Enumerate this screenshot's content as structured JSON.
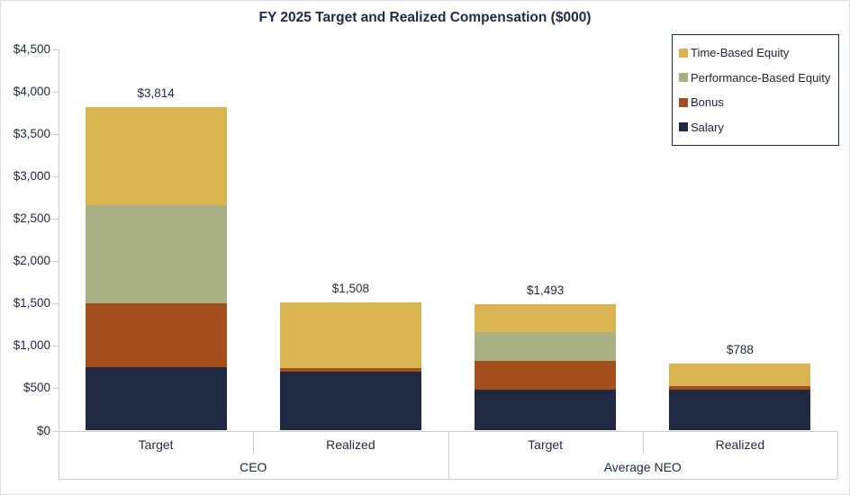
{
  "title": "FY 2025 Target and Realized Compensation ($000)",
  "chart_data": {
    "type": "bar",
    "stacked": true,
    "title": "FY 2025 Target and Realized Compensation ($000)",
    "categories": [
      "Target",
      "Realized",
      "Target",
      "Realized"
    ],
    "groups": [
      "CEO",
      "Average NEO"
    ],
    "series": [
      {
        "name": "Salary",
        "color": "#1f2a42",
        "values": [
          750,
          700,
          478,
          478
        ]
      },
      {
        "name": "Bonus",
        "color": "#a44e1d",
        "values": [
          750,
          40,
          347,
          47
        ]
      },
      {
        "name": "Performance-Based Equity",
        "color": "#a9b083",
        "values": [
          1157,
          0,
          334,
          0
        ]
      },
      {
        "name": "Time-Based Equity",
        "color": "#d9b451",
        "values": [
          1157,
          768,
          334,
          263
        ]
      }
    ],
    "totals": [
      3814,
      1508,
      1493,
      788
    ],
    "total_labels": [
      "$3,814",
      "$1,508",
      "$1,493",
      "$788"
    ],
    "y_tick_labels": [
      "$4,500",
      "$4,000",
      "$3,500",
      "$3,000",
      "$2,500",
      "$2,000",
      "$1,500",
      "$1,000",
      "$500",
      "$0"
    ],
    "y_tick_values": [
      4500,
      4000,
      3500,
      3000,
      2500,
      2000,
      1500,
      1000,
      500,
      0
    ],
    "ylim": [
      0,
      4500
    ],
    "legend_entries_top_to_bottom": [
      "Time-Based Equity",
      "Performance-Based Equity",
      "Bonus",
      "Salary"
    ],
    "legend_position": "top-right-inside",
    "gridlines": false,
    "axis_line_color": "#cdcdcd",
    "text_color": "#1f2940",
    "legend_border_color": "#1f2a42"
  }
}
